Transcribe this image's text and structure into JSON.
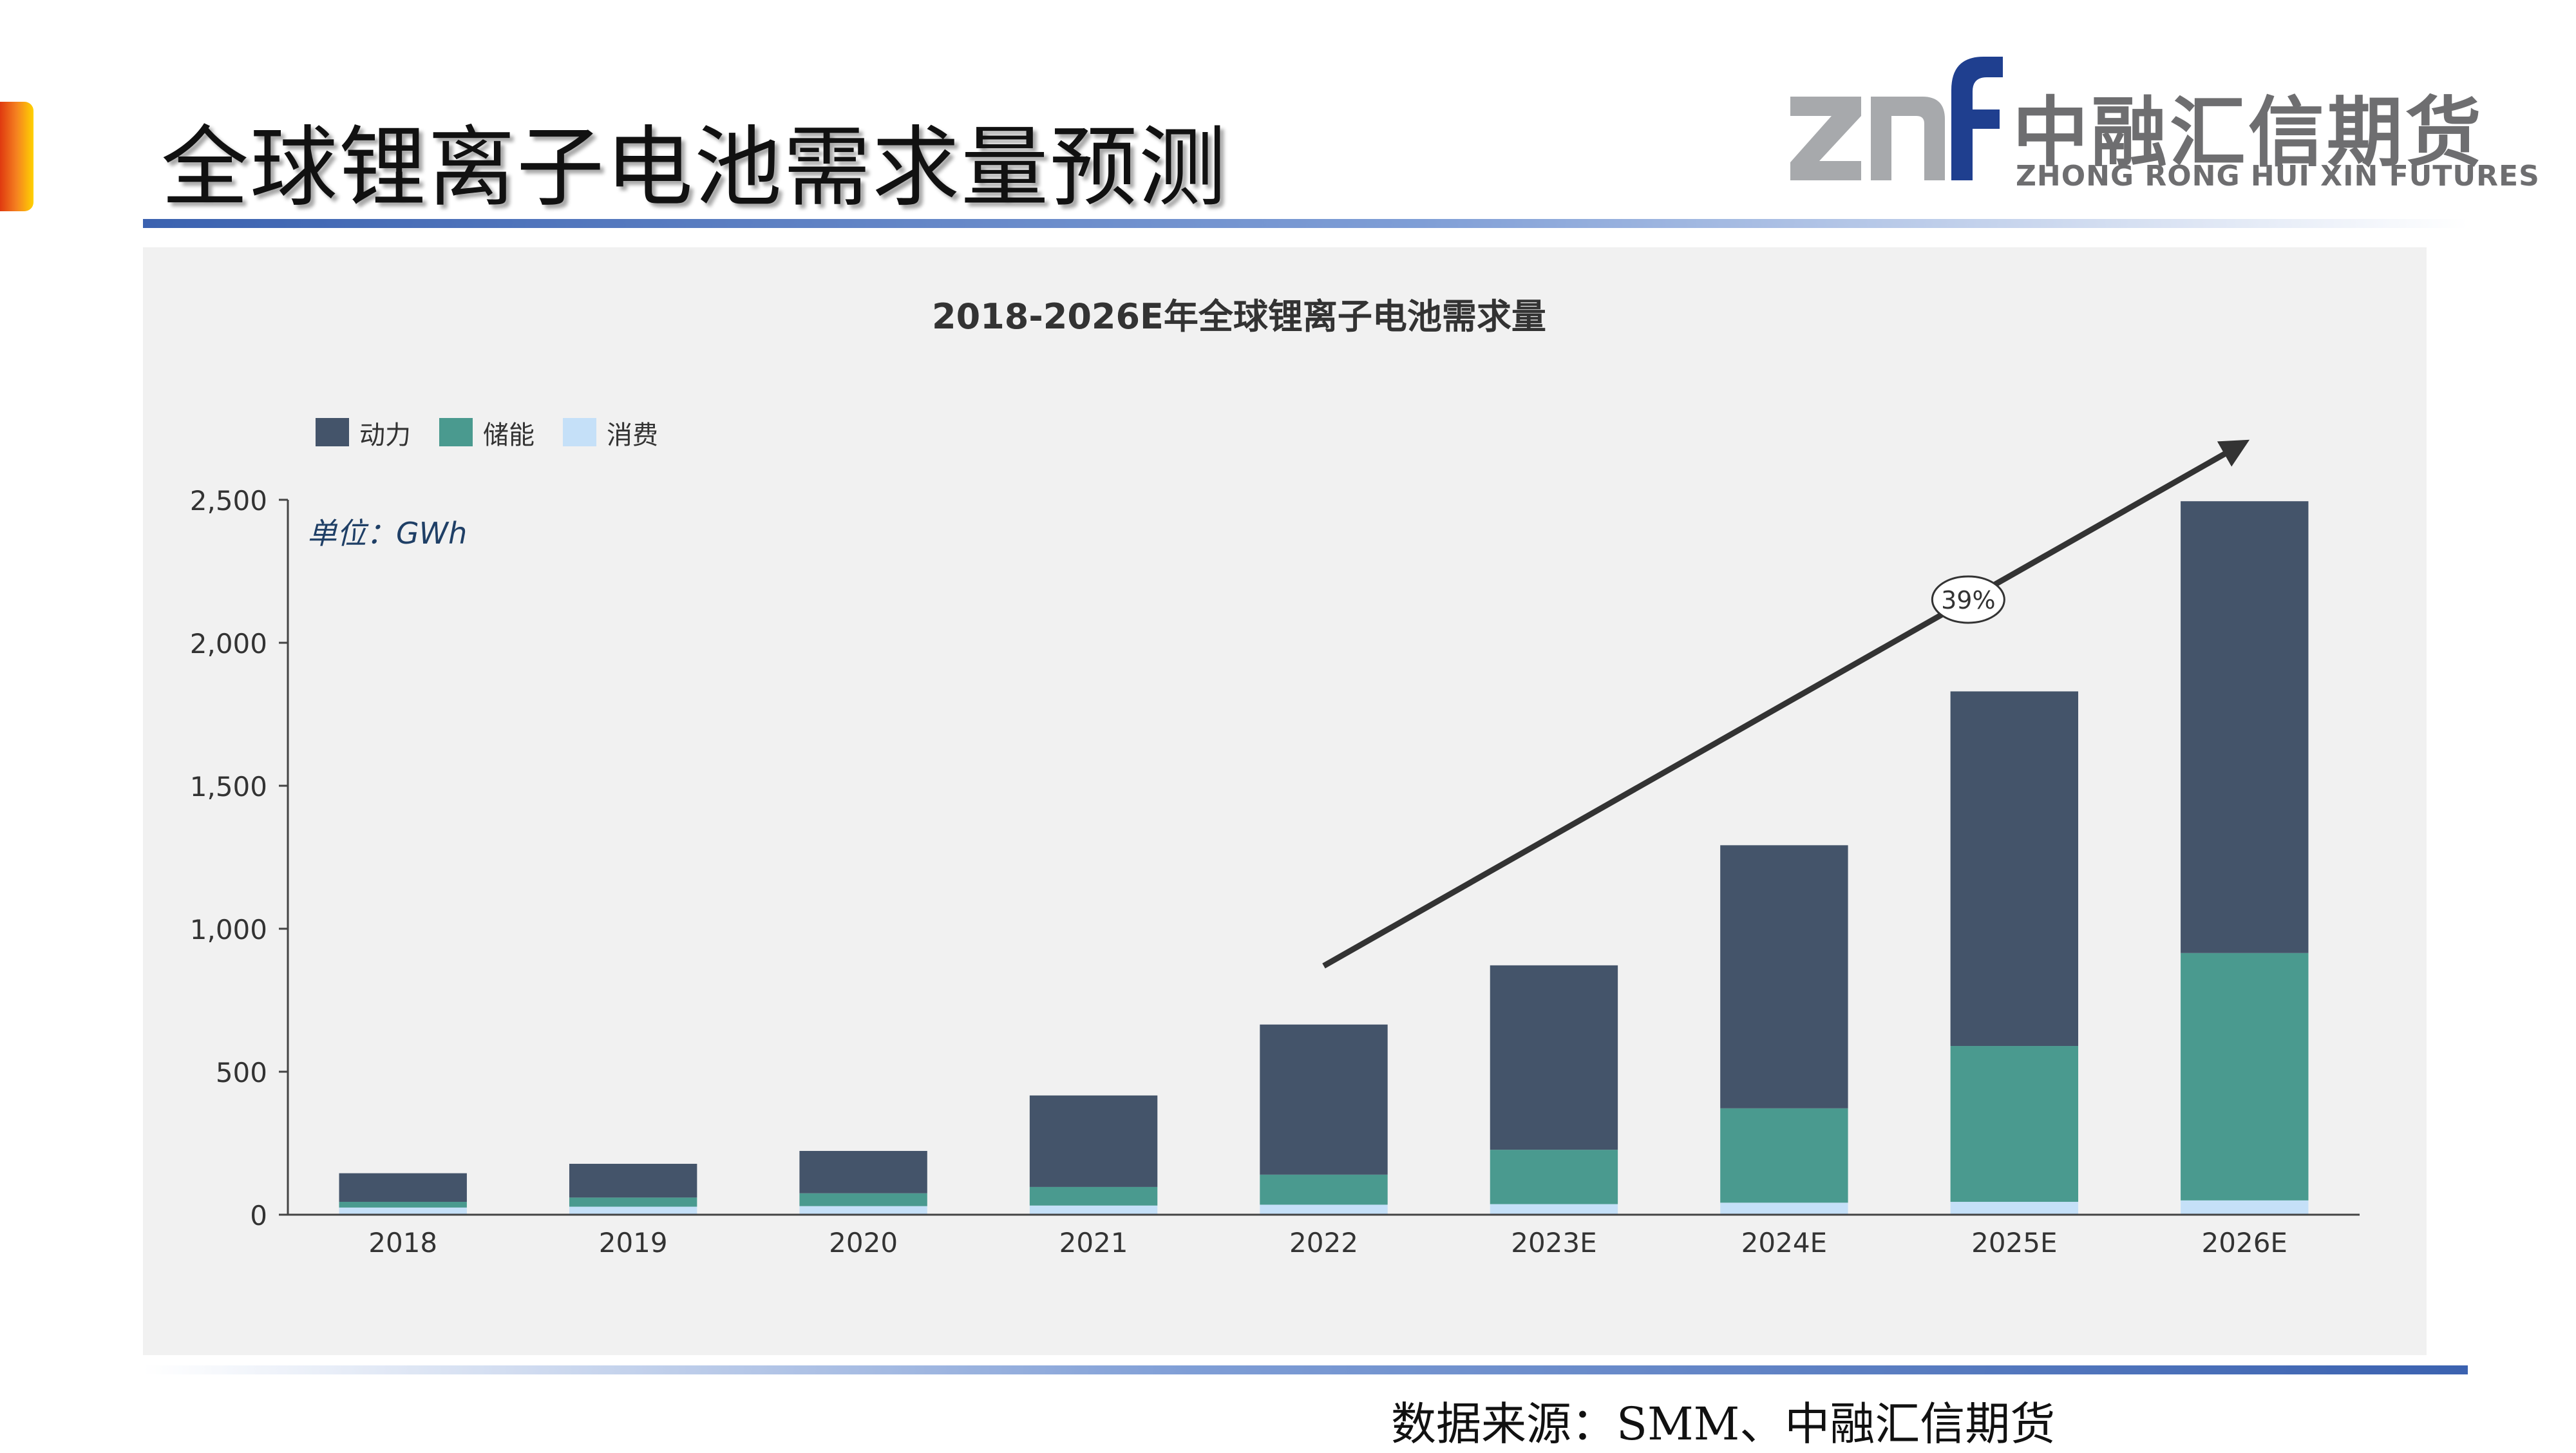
{
  "slide": {
    "title": "全球锂离子电池需求量预测",
    "source": "数据来源：SMM、中融汇信期货"
  },
  "logo": {
    "mark": "znf",
    "name_cn": "中融汇信期货",
    "name_en": "ZHONG RONG HUI XIN FUTURES"
  },
  "colors": {
    "power": "#44546a",
    "storage": "#4a9a8f",
    "consumer": "#c5e0f8",
    "title_rule": "#3b62b0",
    "accent": "#f58220"
  },
  "chart_data": {
    "type": "bar",
    "stacked": true,
    "title": "2018-2026E年全球锂离子电池需求量",
    "unit_label": "单位：GWh",
    "categories": [
      "2018",
      "2019",
      "2020",
      "2021",
      "2022",
      "2023E",
      "2024E",
      "2025E",
      "2026E"
    ],
    "series": [
      {
        "name": "消费",
        "color": "#c5e0f8",
        "values": [
          25,
          28,
          30,
          32,
          35,
          37,
          42,
          45,
          50
        ]
      },
      {
        "name": "储能",
        "color": "#4a9a8f",
        "values": [
          20,
          32,
          45,
          65,
          105,
          190,
          330,
          545,
          865
        ]
      },
      {
        "name": "动力",
        "color": "#44546a",
        "values": [
          100,
          118,
          148,
          320,
          525,
          645,
          920,
          1240,
          1580
        ]
      }
    ],
    "legend_order": [
      "动力",
      "储能",
      "消费"
    ],
    "legend_position": "top-left",
    "ylim": [
      0,
      2500
    ],
    "yticks": [
      0,
      500,
      1000,
      1500,
      2000,
      2500
    ],
    "ytick_labels": [
      "0",
      "500",
      "1,000",
      "1,500",
      "2,000",
      "2,500"
    ],
    "grid": false,
    "annotation": {
      "text": "39%",
      "from_category": "2022",
      "to_category": "2026E"
    }
  }
}
